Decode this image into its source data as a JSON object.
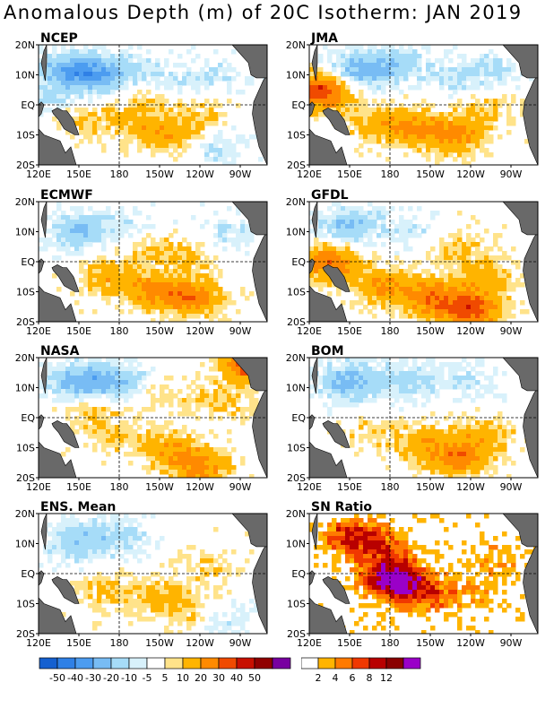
{
  "title": "Anomalous Depth (m) of 20C Isotherm: JAN 2019",
  "colors": {
    "anomaly": [
      "#1560d0",
      "#2f80e6",
      "#4c9cf0",
      "#78bcf4",
      "#a6dcf8",
      "#d8f1fb",
      "#ffffff",
      "#ffe38a",
      "#ffb400",
      "#ff8a00",
      "#f04a00",
      "#c81000",
      "#900000",
      "#7800a0"
    ],
    "ratio": [
      "#ffffff",
      "#ffb400",
      "#ff7a00",
      "#f03800",
      "#b80000",
      "#8a0000",
      "#9a00c8"
    ],
    "land": "#696969"
  },
  "chart_data": [
    {
      "type": "heatmap",
      "title": "NCEP",
      "x_ticks": [
        "120E",
        "150E",
        "180",
        "150W",
        "120W",
        "90W"
      ],
      "y_ticks": [
        "20N",
        "10N",
        "EQ",
        "10S",
        "20S"
      ],
      "xlim": [
        120,
        290
      ],
      "ylim": [
        -20,
        20
      ],
      "blobs": [
        {
          "lon": 160,
          "lat": 10,
          "value": -25
        },
        {
          "lon": 140,
          "lat": 12,
          "value": -20
        },
        {
          "lon": 185,
          "lat": 12,
          "value": -10
        },
        {
          "lon": 215,
          "lat": 8,
          "value": -8
        },
        {
          "lon": 250,
          "lat": 10,
          "value": -8
        },
        {
          "lon": 150,
          "lat": -5,
          "value": 10
        },
        {
          "lon": 190,
          "lat": -6,
          "value": 10
        },
        {
          "lon": 215,
          "lat": -10,
          "value": 15
        },
        {
          "lon": 240,
          "lat": -4,
          "value": 10
        },
        {
          "lon": 200,
          "lat": 2,
          "value": 8
        },
        {
          "lon": 255,
          "lat": -14,
          "value": -10
        },
        {
          "lon": 125,
          "lat": 2,
          "value": -10
        }
      ]
    },
    {
      "type": "heatmap",
      "title": "JMA",
      "x_ticks": [
        "120E",
        "150E",
        "180",
        "150W",
        "120W",
        "90W"
      ],
      "y_ticks": [
        "20N",
        "10N",
        "EQ",
        "10S",
        "20S"
      ],
      "xlim": [
        120,
        290
      ],
      "ylim": [
        -20,
        20
      ],
      "blobs": [
        {
          "lon": 155,
          "lat": 11,
          "value": -25
        },
        {
          "lon": 185,
          "lat": 14,
          "value": -15
        },
        {
          "lon": 130,
          "lat": 5,
          "value": 40
        },
        {
          "lon": 170,
          "lat": -6,
          "value": 15
        },
        {
          "lon": 200,
          "lat": -8,
          "value": 20
        },
        {
          "lon": 230,
          "lat": -10,
          "value": 20
        },
        {
          "lon": 250,
          "lat": -2,
          "value": 10
        },
        {
          "lon": 225,
          "lat": 8,
          "value": -8
        },
        {
          "lon": 255,
          "lat": 12,
          "value": -10
        }
      ]
    },
    {
      "type": "heatmap",
      "title": "ECMWF",
      "x_ticks": [
        "120E",
        "150E",
        "180",
        "150W",
        "120W",
        "90W"
      ],
      "y_ticks": [
        "20N",
        "10N",
        "EQ",
        "10S",
        "20S"
      ],
      "xlim": [
        120,
        290
      ],
      "ylim": [
        -20,
        20
      ],
      "blobs": [
        {
          "lon": 150,
          "lat": 10,
          "value": -20
        },
        {
          "lon": 190,
          "lat": 12,
          "value": -8
        },
        {
          "lon": 170,
          "lat": -5,
          "value": 15
        },
        {
          "lon": 205,
          "lat": -10,
          "value": 20
        },
        {
          "lon": 235,
          "lat": -12,
          "value": 25
        },
        {
          "lon": 230,
          "lat": 2,
          "value": 10
        },
        {
          "lon": 260,
          "lat": 10,
          "value": -8
        },
        {
          "lon": 200,
          "lat": 5,
          "value": 8
        }
      ]
    },
    {
      "type": "heatmap",
      "title": "GFDL",
      "x_ticks": [
        "120E",
        "150E",
        "180",
        "150W",
        "120W",
        "90W"
      ],
      "y_ticks": [
        "20N",
        "10N",
        "EQ",
        "10S",
        "20S"
      ],
      "xlim": [
        120,
        290
      ],
      "ylim": [
        -20,
        20
      ],
      "blobs": [
        {
          "lon": 150,
          "lat": 12,
          "value": -20
        },
        {
          "lon": 195,
          "lat": 10,
          "value": -8
        },
        {
          "lon": 135,
          "lat": 0,
          "value": 30
        },
        {
          "lon": 175,
          "lat": -8,
          "value": 20
        },
        {
          "lon": 210,
          "lat": -12,
          "value": 25
        },
        {
          "lon": 240,
          "lat": -16,
          "value": 35
        },
        {
          "lon": 250,
          "lat": -5,
          "value": 15
        },
        {
          "lon": 230,
          "lat": 5,
          "value": 10
        }
      ]
    },
    {
      "type": "heatmap",
      "title": "NASA",
      "x_ticks": [
        "120E",
        "150E",
        "180",
        "150W",
        "120W",
        "90W"
      ],
      "y_ticks": [
        "20N",
        "10N",
        "EQ",
        "10S",
        "20S"
      ],
      "xlim": [
        120,
        290
      ],
      "ylim": [
        -20,
        20
      ],
      "blobs": [
        {
          "lon": 150,
          "lat": 12,
          "value": -25
        },
        {
          "lon": 180,
          "lat": 12,
          "value": -20
        },
        {
          "lon": 210,
          "lat": 8,
          "value": 8
        },
        {
          "lon": 175,
          "lat": -6,
          "value": 10
        },
        {
          "lon": 215,
          "lat": -10,
          "value": 15
        },
        {
          "lon": 240,
          "lat": -16,
          "value": 25
        },
        {
          "lon": 255,
          "lat": 5,
          "value": 10
        },
        {
          "lon": 280,
          "lat": 18,
          "value": 40
        },
        {
          "lon": 160,
          "lat": 3,
          "value": 10
        }
      ]
    },
    {
      "type": "heatmap",
      "title": "BOM",
      "x_ticks": [
        "120E",
        "150E",
        "180",
        "150W",
        "120W",
        "90W"
      ],
      "y_ticks": [
        "20N",
        "10N",
        "EQ",
        "10S",
        "20S"
      ],
      "xlim": [
        120,
        290
      ],
      "ylim": [
        -20,
        20
      ],
      "blobs": [
        {
          "lon": 150,
          "lat": 12,
          "value": -25
        },
        {
          "lon": 195,
          "lat": 12,
          "value": -15
        },
        {
          "lon": 240,
          "lat": 12,
          "value": -8
        },
        {
          "lon": 205,
          "lat": -8,
          "value": 15
        },
        {
          "lon": 230,
          "lat": -14,
          "value": 25
        },
        {
          "lon": 250,
          "lat": -6,
          "value": 15
        },
        {
          "lon": 165,
          "lat": -5,
          "value": 8
        }
      ]
    },
    {
      "type": "heatmap",
      "title": "ENS. Mean",
      "x_ticks": [
        "120E",
        "150E",
        "180",
        "150W",
        "120W",
        "90W"
      ],
      "y_ticks": [
        "20N",
        "10N",
        "EQ",
        "10S",
        "20S"
      ],
      "xlim": [
        120,
        290
      ],
      "ylim": [
        -20,
        20
      ],
      "blobs": [
        {
          "lon": 150,
          "lat": 11,
          "value": -20
        },
        {
          "lon": 185,
          "lat": 12,
          "value": -10
        },
        {
          "lon": 170,
          "lat": -6,
          "value": 10
        },
        {
          "lon": 210,
          "lat": -8,
          "value": 12
        },
        {
          "lon": 235,
          "lat": -12,
          "value": 12
        },
        {
          "lon": 245,
          "lat": 2,
          "value": 8
        },
        {
          "lon": 255,
          "lat": -15,
          "value": -10
        }
      ]
    },
    {
      "type": "heatmap",
      "title": "SN Ratio",
      "x_ticks": [
        "120E",
        "150E",
        "180",
        "150W",
        "120W",
        "90W"
      ],
      "y_ticks": [
        "20N",
        "10N",
        "EQ",
        "10S",
        "20S"
      ],
      "xlim": [
        120,
        290
      ],
      "ylim": [
        -20,
        20
      ],
      "blobs": [
        {
          "lon": 150,
          "lat": 12,
          "value": 8
        },
        {
          "lon": 180,
          "lat": 0,
          "value": 10
        },
        {
          "lon": 190,
          "lat": -4,
          "value": 8
        },
        {
          "lon": 210,
          "lat": -8,
          "value": 4
        },
        {
          "lon": 240,
          "lat": -6,
          "value": 3
        },
        {
          "lon": 175,
          "lat": 10,
          "value": 5
        },
        {
          "lon": 260,
          "lat": 5,
          "value": 3
        }
      ]
    }
  ],
  "legend_anomaly": {
    "labels": [
      "-50",
      "-40",
      "-30",
      "-20",
      "-10",
      "-5",
      "5",
      "10",
      "20",
      "30",
      "40",
      "50"
    ]
  },
  "legend_ratio": {
    "labels": [
      "2",
      "4",
      "6",
      "8",
      "12"
    ]
  }
}
